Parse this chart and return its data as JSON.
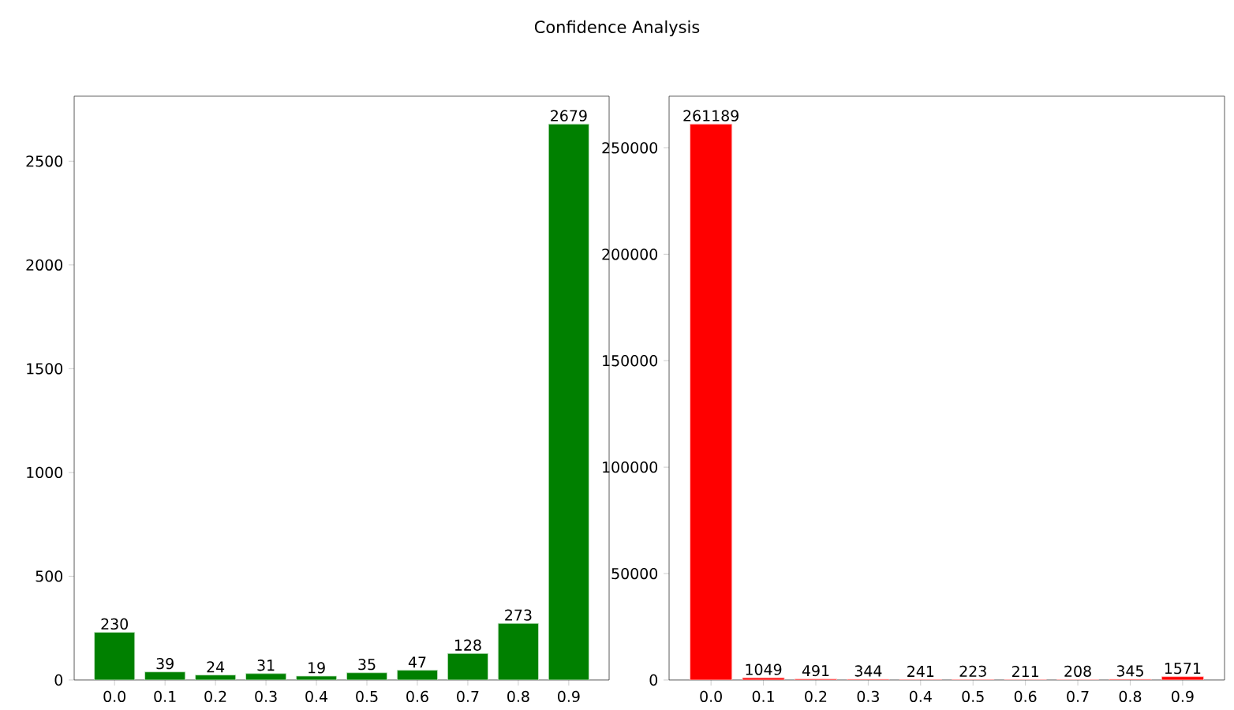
{
  "chart_data": [
    {
      "type": "bar",
      "title": "Confidence Analysis",
      "categories": [
        "0.0",
        "0.1",
        "0.2",
        "0.3",
        "0.4",
        "0.5",
        "0.6",
        "0.7",
        "0.8",
        "0.9"
      ],
      "values": [
        230,
        39,
        24,
        31,
        19,
        35,
        47,
        128,
        273,
        2679
      ],
      "color": "#008000",
      "ylim": [
        0,
        2813
      ],
      "yticks": [
        0,
        500,
        1000,
        1500,
        2000,
        2500
      ],
      "data_labels": true
    },
    {
      "type": "bar",
      "categories": [
        "0.0",
        "0.1",
        "0.2",
        "0.3",
        "0.4",
        "0.5",
        "0.6",
        "0.7",
        "0.8",
        "0.9"
      ],
      "values": [
        261189,
        1049,
        491,
        344,
        241,
        223,
        211,
        208,
        345,
        1571
      ],
      "color": "#ff0000",
      "ylim": [
        0,
        274248
      ],
      "yticks": [
        0,
        50000,
        100000,
        150000,
        200000,
        250000
      ],
      "data_labels": true
    }
  ]
}
